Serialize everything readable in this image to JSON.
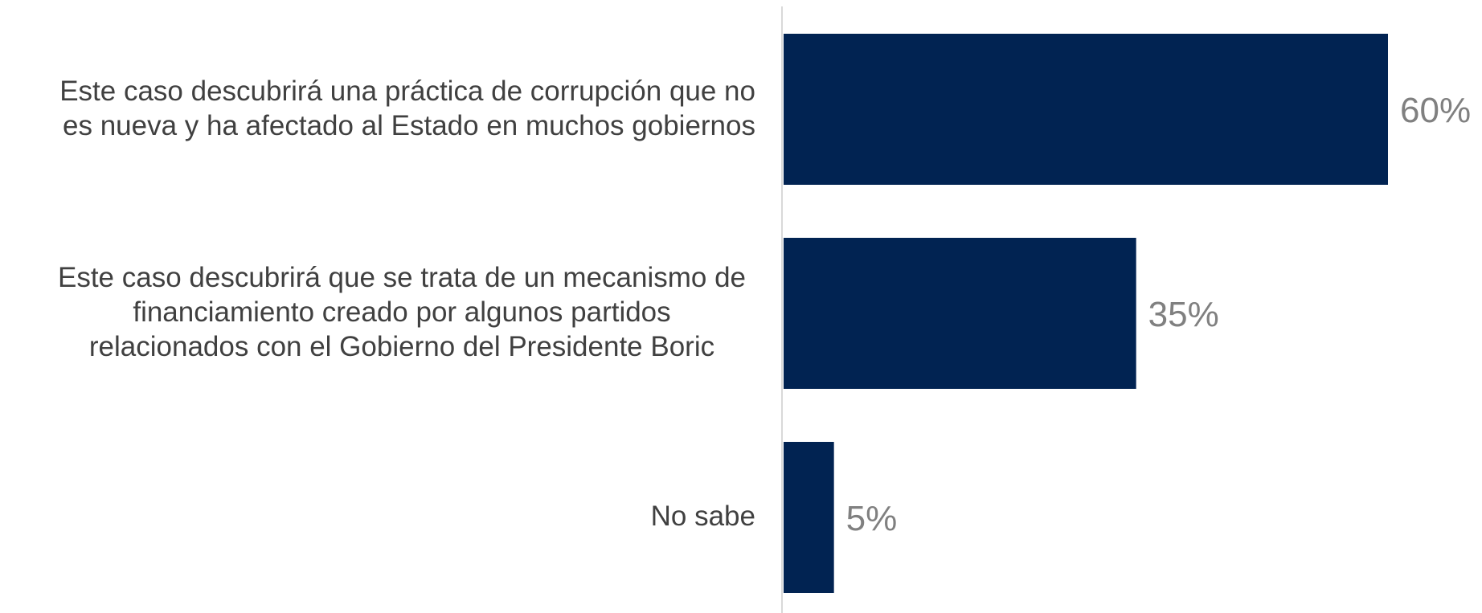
{
  "chart_data": {
    "type": "bar",
    "orientation": "horizontal",
    "categories": [
      "Este caso descubrirá una práctica de corrupción que no es nueva y ha afectado al Estado en muchos gobiernos",
      "Este caso descubrirá que se trata de un mecanismo de financiamiento creado por algunos partidos relacionados con el Gobierno del Presidente Boric",
      "No sabe"
    ],
    "category_lines": [
      [
        "Este caso descubrirá una práctica de corrupción que no",
        "es nueva y ha afectado al Estado en muchos gobiernos"
      ],
      [
        "Este caso descubrirá que se trata de un mecanismo de",
        "financiamiento creado por algunos partidos",
        "relacionados con el Gobierno del Presidente Boric"
      ],
      [
        "No sabe"
      ]
    ],
    "values": [
      60,
      35,
      5
    ],
    "data_labels": [
      "60%",
      "35%",
      "5%"
    ],
    "xlim": [
      0,
      60
    ],
    "grid": false,
    "legend": "none",
    "colors": {
      "bar": "#012352",
      "value_label": "#808080",
      "category_label": "#404040",
      "axis_line": "#d9d9d9"
    }
  }
}
